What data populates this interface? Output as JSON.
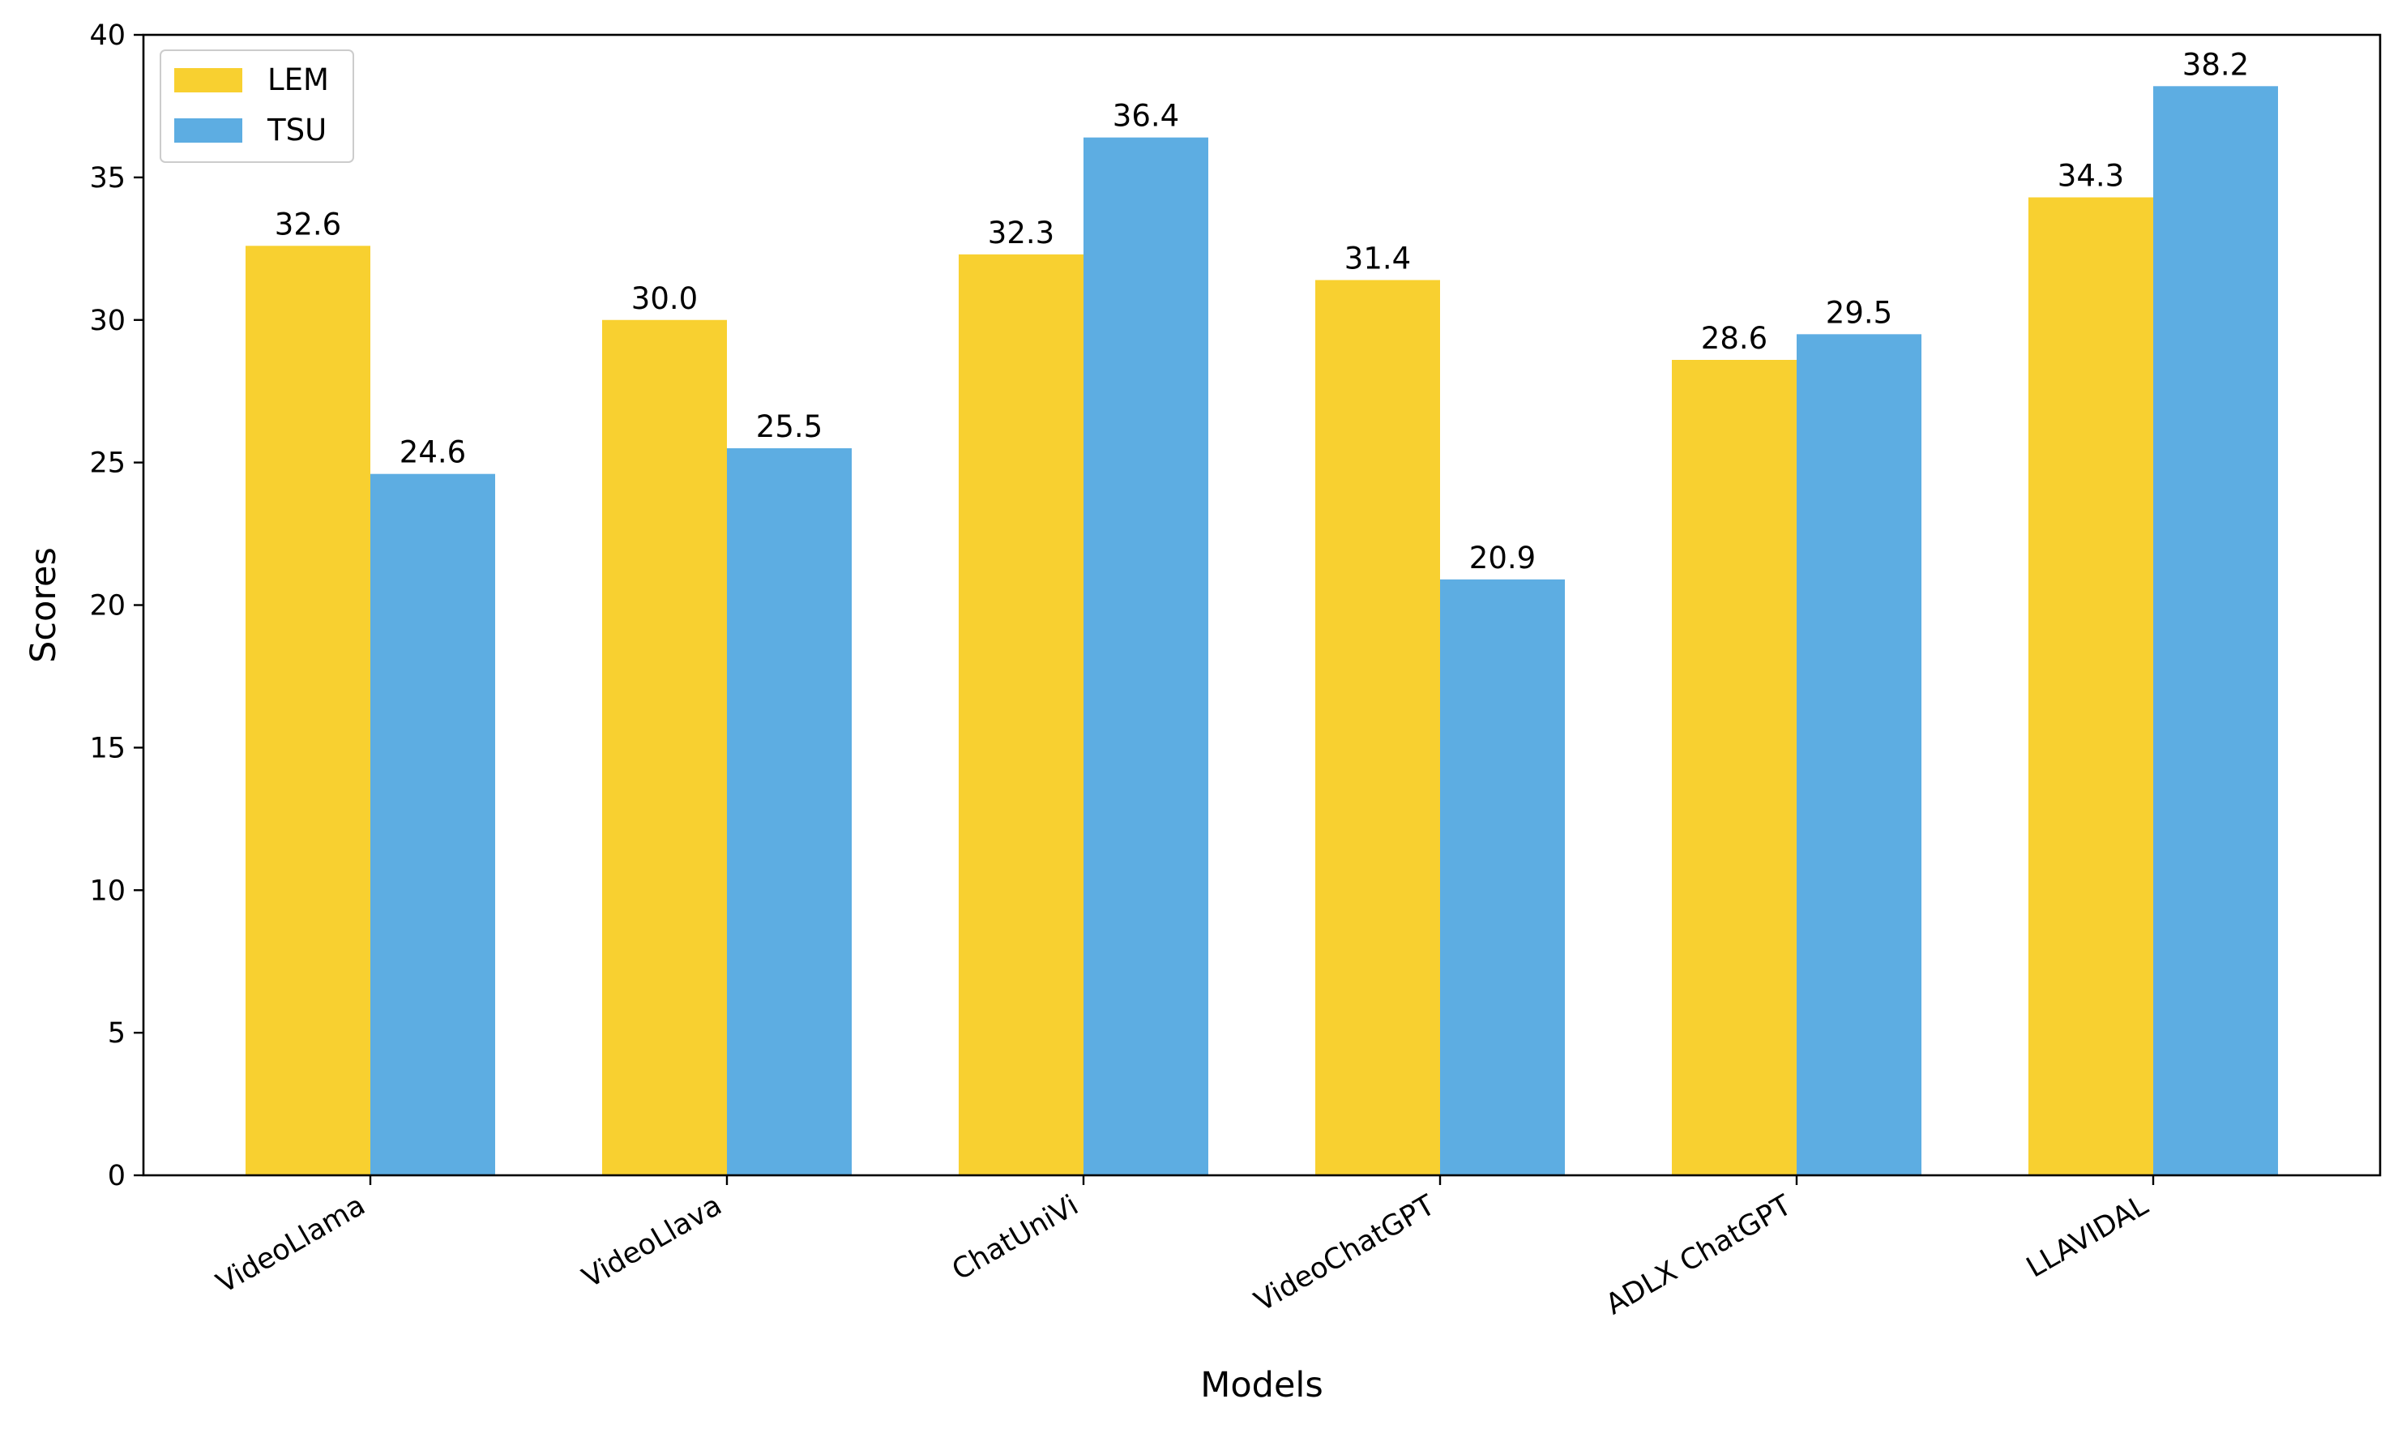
{
  "chart_data": {
    "type": "bar",
    "title": "",
    "xlabel": "Models",
    "ylabel": "Scores",
    "categories": [
      "VideoLlama",
      "VideoLlava",
      "ChatUniVi",
      "VideoChatGPT",
      "ADLX ChatGPT",
      "LLAVIDAL"
    ],
    "series": [
      {
        "name": "LEM",
        "color": "#f8d030",
        "values": [
          32.6,
          30.0,
          32.3,
          31.4,
          28.6,
          34.3
        ]
      },
      {
        "name": "TSU",
        "color": "#5dade2",
        "values": [
          24.6,
          25.5,
          36.4,
          20.9,
          29.5,
          38.2
        ]
      }
    ],
    "ylim": [
      0,
      40
    ],
    "yticks": [
      0,
      5,
      10,
      15,
      20,
      25,
      30,
      35,
      40
    ],
    "value_labels": true,
    "legend_position": "top-left",
    "grid": false
  }
}
